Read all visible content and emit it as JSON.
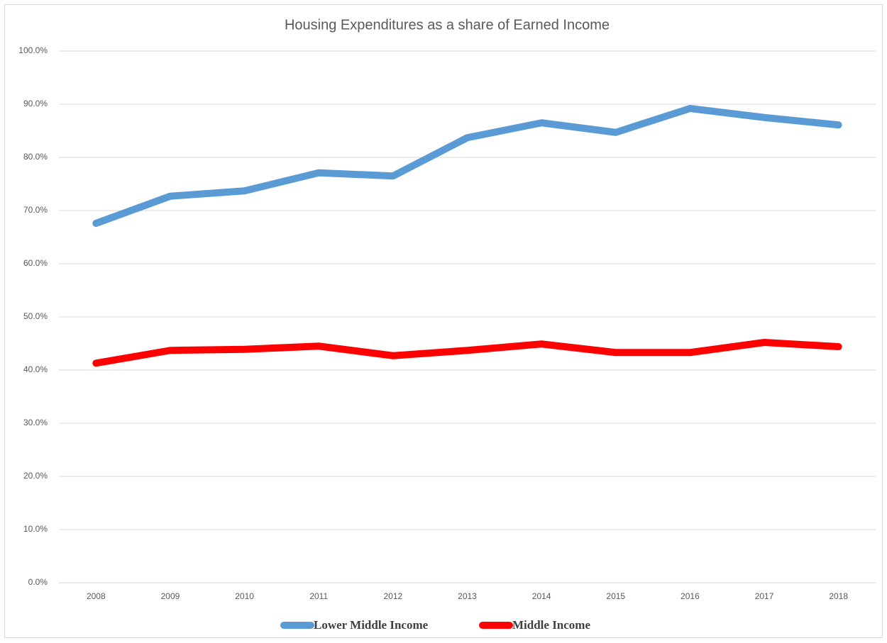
{
  "chart_data": {
    "type": "line",
    "title": "Housing Expenditures as a share of Earned Income",
    "categories": [
      "2008",
      "2009",
      "2010",
      "2011",
      "2012",
      "2013",
      "2014",
      "2015",
      "2016",
      "2017",
      "2018"
    ],
    "series": [
      {
        "name": "Lower Middle Income",
        "color": "#5b9bd5",
        "values": [
          67.6,
          72.7,
          73.7,
          77.1,
          76.5,
          83.7,
          86.5,
          84.7,
          89.2,
          87.5,
          86.1
        ]
      },
      {
        "name": "Middle Income",
        "color": "#ff0000",
        "values": [
          41.3,
          43.7,
          43.9,
          44.5,
          42.7,
          43.7,
          44.9,
          43.3,
          43.3,
          45.2,
          44.4
        ]
      }
    ],
    "ylim": [
      0,
      100
    ],
    "yticks": [
      {
        "value": 0,
        "label": "0.0%"
      },
      {
        "value": 10,
        "label": "10.0%"
      },
      {
        "value": 20,
        "label": "20.0%"
      },
      {
        "value": 30,
        "label": "30.0%"
      },
      {
        "value": 40,
        "label": "40.0%"
      },
      {
        "value": 50,
        "label": "50.0%"
      },
      {
        "value": 60,
        "label": "60.0%"
      },
      {
        "value": 70,
        "label": "70.0%"
      },
      {
        "value": 80,
        "label": "80.0%"
      },
      {
        "value": 90,
        "label": "90.0%"
      },
      {
        "value": 100,
        "label": "100.0%"
      }
    ],
    "grid": true,
    "legend": "bottom"
  }
}
